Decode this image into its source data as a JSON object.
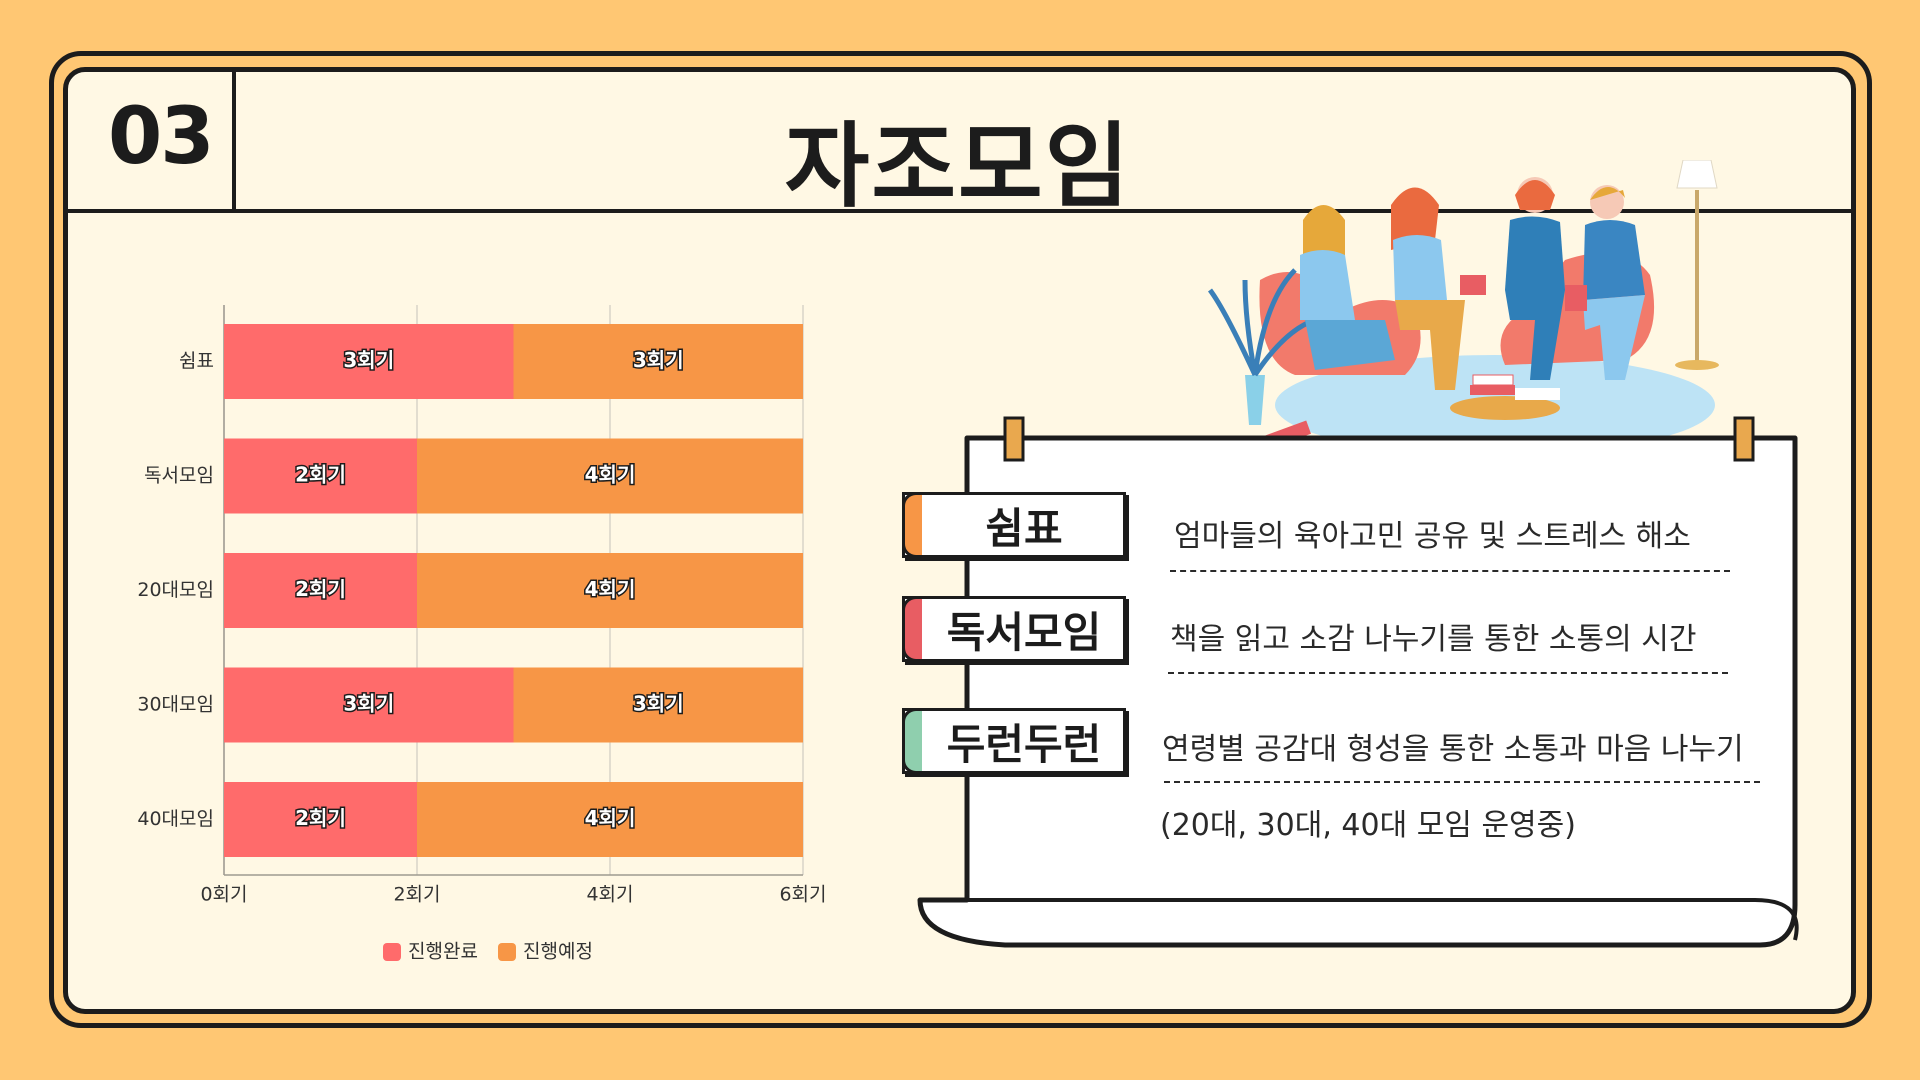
{
  "header": {
    "section_number": "03",
    "title": "자조모임"
  },
  "chart_data": {
    "type": "bar",
    "orientation": "horizontal",
    "stacked": true,
    "categories": [
      "쉼표",
      "독서모임",
      "20대모임",
      "30대모임",
      "40대모임"
    ],
    "series": [
      {
        "name": "진행완료",
        "values": [
          3,
          2,
          2,
          3,
          2
        ],
        "color": "#FF6B6B"
      },
      {
        "name": "진행예정",
        "values": [
          3,
          4,
          4,
          3,
          4
        ],
        "color": "#F79646"
      }
    ],
    "data_label_suffix": "회기",
    "x_ticks": [
      "0회기",
      "2회기",
      "4회기",
      "6회기"
    ],
    "xlim": [
      0,
      6
    ],
    "grid": true,
    "legend_position": "bottom"
  },
  "groups": [
    {
      "name": "쉼표",
      "desc": "엄마들의 육아고민 공유 및 스트레스 해소",
      "tab_color": "#F79646"
    },
    {
      "name": "독서모임",
      "desc": "책을 읽고 소감 나누기를 통한 소통의 시간",
      "tab_color": "#E85D63"
    },
    {
      "name": "두런두런",
      "desc": "연령별 공감대 형성을 통한 소통과 마음 나누기",
      "tab_color": "#8FCFAE"
    }
  ],
  "note": "(20대, 30대, 40대 모임 운영중)"
}
